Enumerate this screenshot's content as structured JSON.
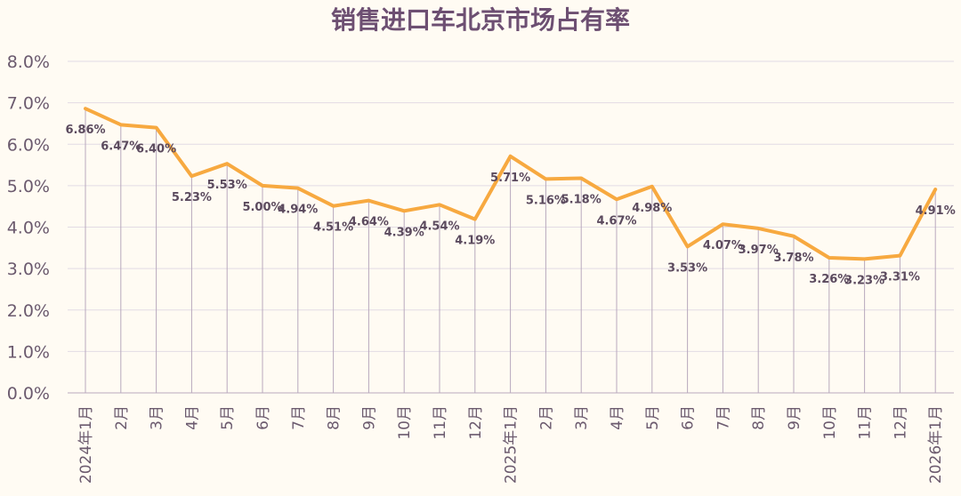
{
  "chart_data": {
    "type": "line",
    "title": "销售进口车北京市场占有率",
    "categories": [
      "2024年1月",
      "2月",
      "3月",
      "4月",
      "5月",
      "6月",
      "7月",
      "8月",
      "9月",
      "10月",
      "11月",
      "12月",
      "2025年1月",
      "2月",
      "3月",
      "4月",
      "5月",
      "6月",
      "7月",
      "8月",
      "9月",
      "10月",
      "11月",
      "12月",
      "2026年1月"
    ],
    "series": [
      {
        "values": [
          6.86,
          6.47,
          6.4,
          5.23,
          5.53,
          5.0,
          4.94,
          4.51,
          4.64,
          4.39,
          4.54,
          4.19,
          5.71,
          5.16,
          5.18,
          4.67,
          4.98,
          3.53,
          4.07,
          3.97,
          3.78,
          3.26,
          3.23,
          3.31,
          4.91
        ],
        "labels": [
          "6.86%",
          "6.47%",
          "6.40%",
          "5.23%",
          "5.53%",
          "5.00%",
          "4.94%",
          "4.51%",
          "4.64%",
          "4.39%",
          "4.54%",
          "4.19%",
          "5.71%",
          "5.16%",
          "5.18%",
          "4.67%",
          "4.98%",
          "3.53%",
          "4.07%",
          "3.97%",
          "3.78%",
          "3.26%",
          "3.23%",
          "3.31%",
          "4.91%"
        ]
      }
    ],
    "ylim": [
      0,
      8
    ],
    "yticks": [
      "0.0%",
      "1.0%",
      "2.0%",
      "3.0%",
      "4.0%",
      "5.0%",
      "6.0%",
      "7.0%",
      "8.0%"
    ],
    "grid": true,
    "legend": "none",
    "colors": {
      "line": "#f7a940",
      "title": "#6d4f72",
      "background": "#fffbf3"
    }
  }
}
